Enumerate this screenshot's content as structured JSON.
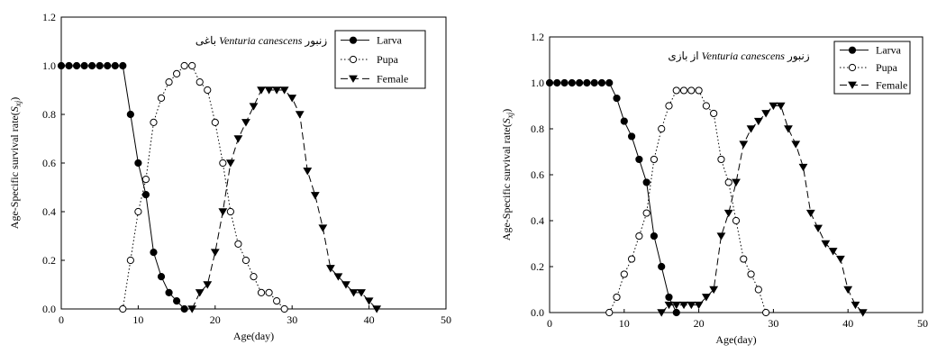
{
  "chart_data": [
    {
      "type": "line",
      "title_prefix": "زنبور",
      "title_species": "Venturia canescens",
      "title_suffix": "باغی",
      "xlabel": "Age(day)",
      "ylabel": "Age-Specific survival rate(S",
      "ylabel_sub": "xj",
      "xlim": [
        0,
        50
      ],
      "ylim": [
        0,
        1.2
      ],
      "xticks": [
        0,
        10,
        20,
        30,
        40,
        50
      ],
      "yticks": [
        0.0,
        0.2,
        0.4,
        0.6,
        0.8,
        1.0,
        1.2
      ],
      "xtick_labels": [
        "0",
        "10",
        "20",
        "30",
        "40",
        "50"
      ],
      "ytick_labels": [
        "0.0",
        "0.2",
        "0.4",
        "0.6",
        "0.8",
        "1.0",
        "1.2"
      ],
      "legend_position": "top-right",
      "series": [
        {
          "name": "Larva",
          "marker": "filled-circle",
          "line": "solid",
          "x": [
            0,
            1,
            2,
            3,
            4,
            5,
            6,
            7,
            8,
            9,
            10,
            11,
            12,
            13,
            14,
            15,
            16
          ],
          "y": [
            1.0,
            1.0,
            1.0,
            1.0,
            1.0,
            1.0,
            1.0,
            1.0,
            1.0,
            0.8,
            0.6,
            0.47,
            0.233,
            0.133,
            0.067,
            0.033,
            0.0
          ]
        },
        {
          "name": "Pupa",
          "marker": "open-circle",
          "line": "dotted",
          "x": [
            8,
            9,
            10,
            11,
            12,
            13,
            14,
            15,
            16,
            17,
            18,
            19,
            20,
            21,
            22,
            23,
            24,
            25,
            26,
            27,
            28,
            29
          ],
          "y": [
            0.0,
            0.2,
            0.4,
            0.533,
            0.767,
            0.867,
            0.933,
            0.967,
            1.0,
            1.0,
            0.933,
            0.9,
            0.767,
            0.6,
            0.4,
            0.267,
            0.2,
            0.133,
            0.067,
            0.067,
            0.033,
            0.0
          ]
        },
        {
          "name": "Female",
          "marker": "filled-triangle-down",
          "line": "dashed",
          "x": [
            17,
            18,
            19,
            20,
            21,
            22,
            23,
            24,
            25,
            26,
            27,
            28,
            29,
            30,
            31,
            32,
            33,
            34,
            35,
            36,
            37,
            38,
            39,
            40,
            41
          ],
          "y": [
            0.0,
            0.067,
            0.1,
            0.233,
            0.4,
            0.6,
            0.7,
            0.767,
            0.833,
            0.9,
            0.9,
            0.9,
            0.9,
            0.867,
            0.8,
            0.567,
            0.467,
            0.333,
            0.167,
            0.133,
            0.1,
            0.067,
            0.067,
            0.033,
            0.0
          ]
        }
      ]
    },
    {
      "type": "line",
      "title_prefix": "زنبور",
      "title_species": "Venturia canescens",
      "title_suffix": "از بازی",
      "xlabel": "Age(day)",
      "ylabel": "Age-Specific survival rate(S",
      "ylabel_sub": "xj",
      "xlim": [
        0,
        50
      ],
      "ylim": [
        0,
        1.2
      ],
      "xticks": [
        0,
        10,
        20,
        30,
        40,
        50
      ],
      "yticks": [
        0.0,
        0.2,
        0.4,
        0.6,
        0.8,
        1.0,
        1.2
      ],
      "xtick_labels": [
        "0",
        "10",
        "20",
        "30",
        "40",
        "50"
      ],
      "ytick_labels": [
        "0.0",
        "0.2",
        "0.4",
        "0.6",
        "0.8",
        "1.0",
        "1.2"
      ],
      "legend_position": "top-right",
      "series": [
        {
          "name": "Larva",
          "marker": "filled-circle",
          "line": "solid",
          "x": [
            0,
            1,
            2,
            3,
            4,
            5,
            6,
            7,
            8,
            9,
            10,
            11,
            12,
            13,
            14,
            15,
            16,
            17
          ],
          "y": [
            1.0,
            1.0,
            1.0,
            1.0,
            1.0,
            1.0,
            1.0,
            1.0,
            1.0,
            0.933,
            0.833,
            0.767,
            0.667,
            0.567,
            0.333,
            0.2,
            0.067,
            0.0
          ]
        },
        {
          "name": "Pupa",
          "marker": "open-circle",
          "line": "dotted",
          "x": [
            8,
            9,
            10,
            11,
            12,
            13,
            14,
            15,
            16,
            17,
            18,
            19,
            20,
            21,
            22,
            23,
            24,
            25,
            26,
            27,
            28,
            29
          ],
          "y": [
            0.0,
            0.067,
            0.167,
            0.233,
            0.333,
            0.433,
            0.667,
            0.8,
            0.9,
            0.967,
            0.967,
            0.967,
            0.967,
            0.9,
            0.867,
            0.667,
            0.567,
            0.4,
            0.233,
            0.167,
            0.1,
            0.0
          ]
        },
        {
          "name": "Female",
          "marker": "filled-triangle-down",
          "line": "dashed",
          "x": [
            15,
            16,
            17,
            18,
            19,
            20,
            21,
            22,
            23,
            24,
            25,
            26,
            27,
            28,
            29,
            30,
            31,
            32,
            33,
            34,
            35,
            36,
            37,
            38,
            39,
            40,
            41,
            42
          ],
          "y": [
            0.0,
            0.033,
            0.033,
            0.033,
            0.033,
            0.033,
            0.067,
            0.1,
            0.333,
            0.433,
            0.567,
            0.733,
            0.8,
            0.833,
            0.867,
            0.9,
            0.9,
            0.8,
            0.733,
            0.633,
            0.433,
            0.367,
            0.3,
            0.267,
            0.233,
            0.1,
            0.033,
            0.0
          ]
        }
      ]
    }
  ]
}
